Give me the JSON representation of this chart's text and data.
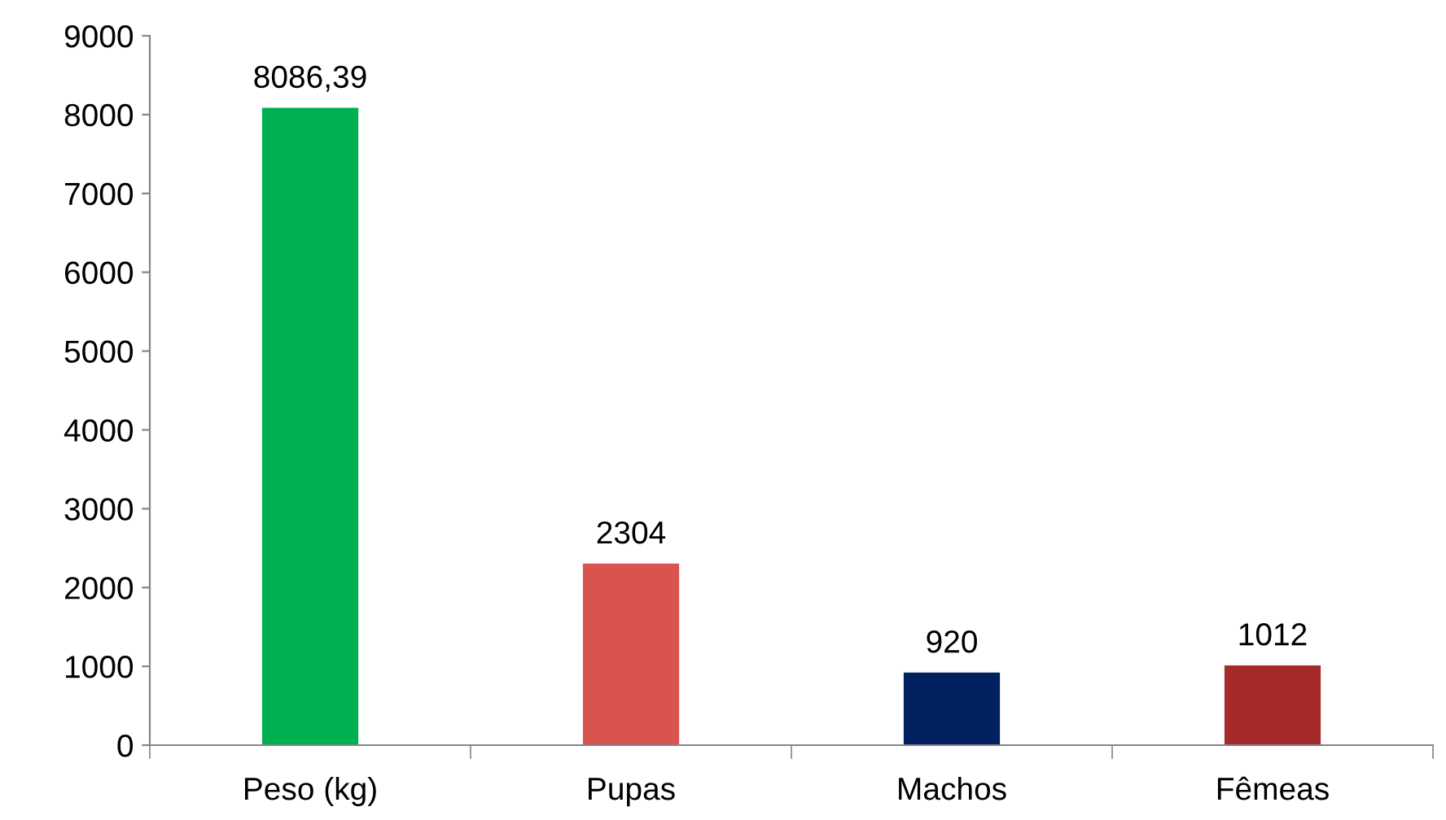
{
  "chart_data": {
    "type": "bar",
    "categories": [
      "Peso (kg)",
      "Pupas",
      "Machos",
      "Fêmeas"
    ],
    "values": [
      8086.39,
      2304,
      920,
      1012
    ],
    "value_labels": [
      "8086,39",
      "2304",
      "920",
      "1012"
    ],
    "colors": [
      "#00b050",
      "#d9534f",
      "#002060",
      "#a52a2a"
    ],
    "ylim": [
      0,
      9000
    ],
    "yticks": [
      0,
      1000,
      2000,
      3000,
      4000,
      5000,
      6000,
      7000,
      8000,
      9000
    ],
    "grid": false,
    "legend": false
  }
}
